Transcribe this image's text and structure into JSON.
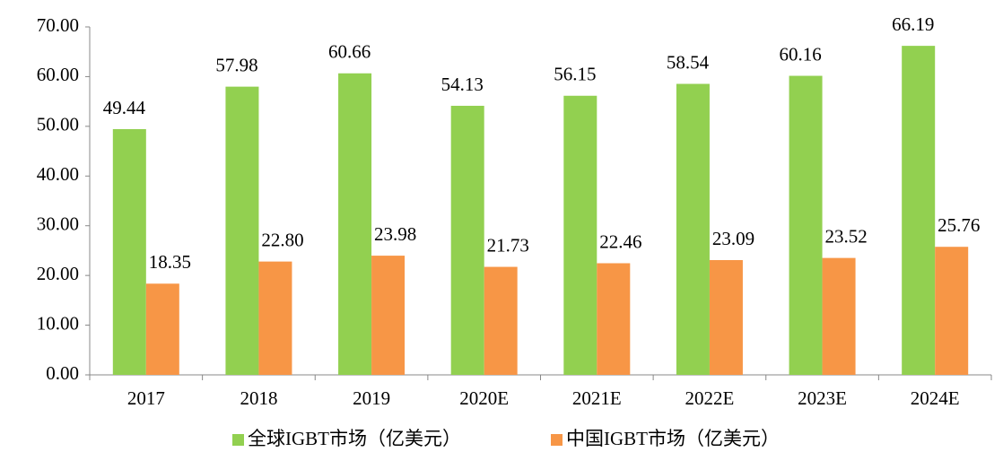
{
  "chart_data": {
    "type": "bar",
    "categories": [
      "2017",
      "2018",
      "2019",
      "2020E",
      "2021E",
      "2022E",
      "2023E",
      "2024E"
    ],
    "series": [
      {
        "name": "全球IGBT市场（亿美元）",
        "color": "#92d050",
        "values": [
          49.44,
          57.98,
          60.66,
          54.13,
          56.15,
          58.54,
          60.16,
          66.19
        ],
        "value_labels": [
          "49.44",
          "57.98",
          "60.66",
          "54.13",
          "56.15",
          "58.54",
          "60.16",
          "66.19"
        ]
      },
      {
        "name": "中国IGBT市场（亿美元）",
        "color": "#f79646",
        "values": [
          18.35,
          22.8,
          23.98,
          21.73,
          22.46,
          23.09,
          23.52,
          25.76
        ],
        "value_labels": [
          "18.35",
          "22.80",
          "23.98",
          "21.73",
          "22.46",
          "23.09",
          "23.52",
          "25.76"
        ]
      }
    ],
    "ylim": [
      0,
      70
    ],
    "yticks": [
      {
        "value": 0,
        "label": "0.00"
      },
      {
        "value": 10,
        "label": "10.00"
      },
      {
        "value": 20,
        "label": "20.00"
      },
      {
        "value": 30,
        "label": "30.00"
      },
      {
        "value": 40,
        "label": "40.00"
      },
      {
        "value": 50,
        "label": "50.00"
      },
      {
        "value": 60,
        "label": "60.00"
      },
      {
        "value": 70,
        "label": "70.00"
      }
    ],
    "legend": "bottom"
  }
}
